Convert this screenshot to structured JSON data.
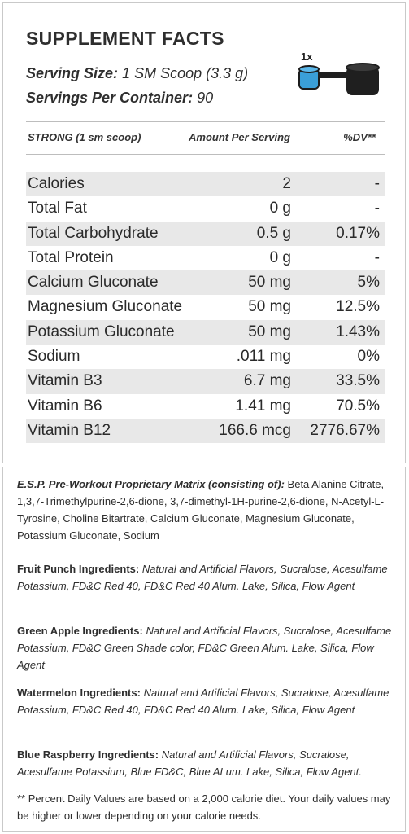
{
  "facts": {
    "title": "SUPPLEMENT FACTS",
    "serving_size_label": "Serving Size:",
    "serving_size_value": "1 SM Scoop (3.3 g)",
    "servings_label": "Servings Per Container:",
    "servings_value": "90",
    "scoop_label": "1x",
    "columns": {
      "name": "STRONG (1 sm scoop)",
      "amount": "Amount Per Serving",
      "dv": "%DV**"
    },
    "rows": [
      {
        "name": "Calories",
        "amount": "2",
        "dv": "-"
      },
      {
        "name": "Total Fat",
        "amount": "0 g",
        "dv": "-"
      },
      {
        "name": "Total Carbohydrate",
        "amount": "0.5 g",
        "dv": "0.17%"
      },
      {
        "name": "Total Protein",
        "amount": "0 g",
        "dv": "-"
      },
      {
        "name": "Calcium Gluconate",
        "amount": "50 mg",
        "dv": "5%"
      },
      {
        "name": "Magnesium Gluconate",
        "amount": "50 mg",
        "dv": "12.5%"
      },
      {
        "name": "Potassium Gluconate",
        "amount": "50 mg",
        "dv": "1.43%"
      },
      {
        "name": "Sodium",
        "amount": ".011 mg",
        "dv": "0%"
      },
      {
        "name": "Vitamin B3",
        "amount": "6.7 mg",
        "dv": "33.5%"
      },
      {
        "name": "Vitamin B6",
        "amount": "1.41 mg",
        "dv": "70.5%"
      },
      {
        "name": "Vitamin B12",
        "amount": "166.6 mcg",
        "dv": "2776.67%"
      }
    ]
  },
  "ingredients": {
    "matrix_lead": "E.S.P. Pre-Workout Proprietary Matrix (consisting of):",
    "matrix_text": "Beta Alanine Citrate, 1,3,7-Trimethylpurine-2,6-dione, 3,7-dimethyl-1H-purine-2,6-dione, N-Acetyl-L-Tyrosine, Choline Bitartrate, Calcium Gluconate, Magnesium Gluconate, Potassium Gluconate, Sodium",
    "fruit_punch_lead": "Fruit Punch Ingredients:",
    "fruit_punch_text": "Natural and Artificial Flavors, Sucralose, Acesulfame Potassium, FD&C Red 40, FD&C Red 40 Alum. Lake, Silica, Flow Agent",
    "green_apple_lead": "Green Apple Ingredients:",
    "green_apple_text": "Natural and Artificial Flavors, Sucralose, Acesulfame Potassium, FD&C Green Shade color, FD&C Green Alum. Lake, Silica, Flow Agent",
    "watermelon_lead": "Watermelon Ingredients:",
    "watermelon_text": "Natural and Artificial Flavors, Sucralose, Acesulfame Potassium, FD&C Red 40, FD&C Red 40 Alum. Lake, Silica, Flow Agent",
    "blue_raspberry_lead": "Blue Raspberry Ingredients:",
    "blue_raspberry_text": "Natural and Artificial Flavors, Sucralose, Acesulfame Potassium, Blue FD&C, Blue ALum. Lake, Silica, Flow Agent.",
    "footnote": "** Percent Daily Values are based on a 2,000 calorie diet. Your daily values may be higher or lower depending on your calorie needs."
  },
  "icons": {
    "small_scoop": "scoop-small-icon",
    "large_scoop": "scoop-large-icon"
  },
  "colors": {
    "small_scoop_fill": "#3a9fd8",
    "large_scoop_fill": "#1f1f1f",
    "row_shade": "#e8e8e8",
    "border": "#c9c9c9"
  }
}
